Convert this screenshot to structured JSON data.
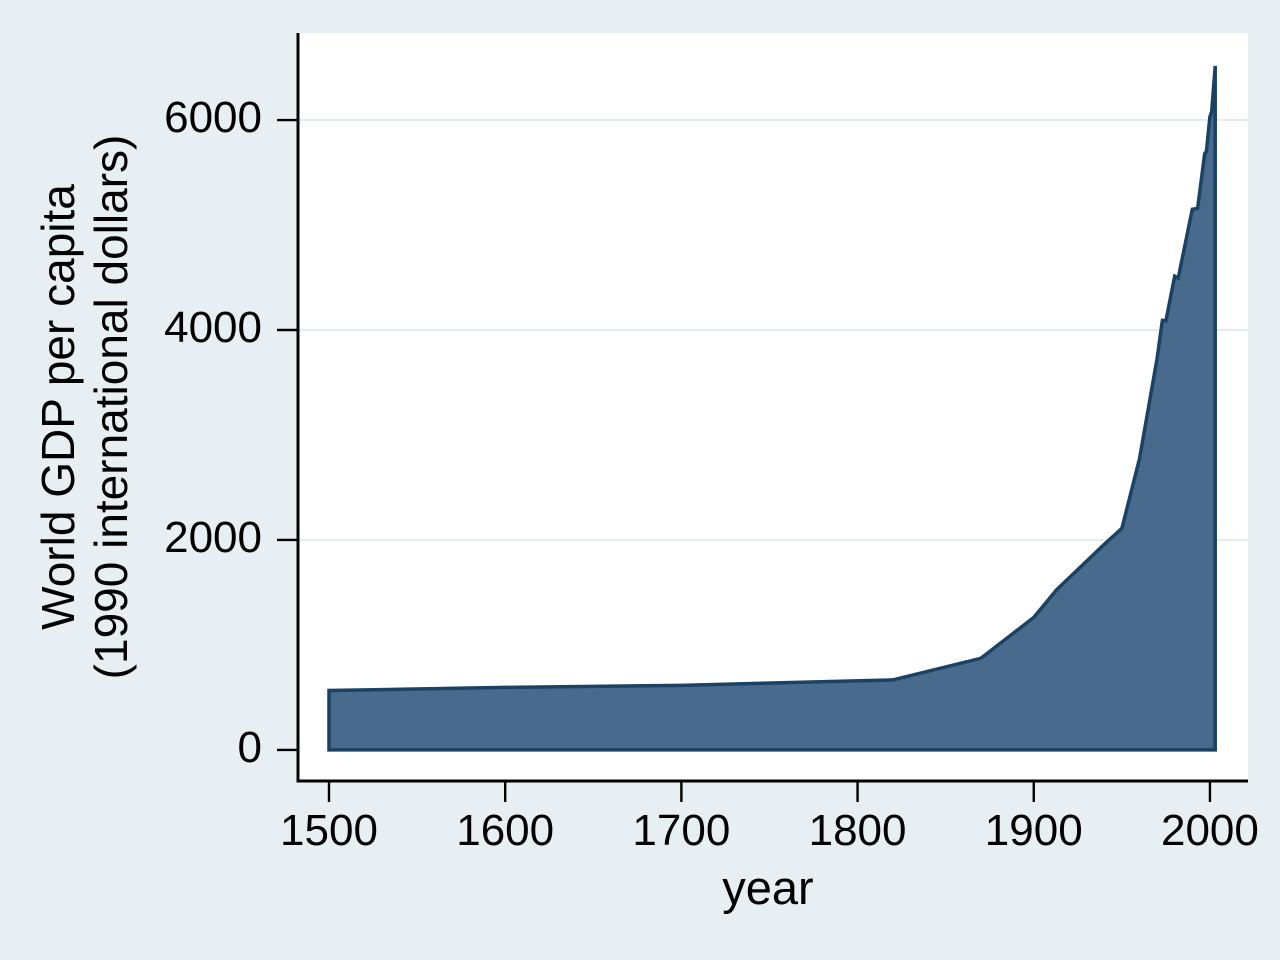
{
  "chart_data": {
    "type": "area",
    "title": "",
    "xlabel": "year",
    "ylabel_line1": "World GDP per capita",
    "ylabel_line2": "(1990 international dollars)",
    "x_ticks": [
      1500,
      1600,
      1700,
      1800,
      1900,
      2000
    ],
    "x_tick_labels": [
      "1500",
      "1600",
      "1700",
      "1800",
      "1900",
      "2000"
    ],
    "y_ticks": [
      0,
      2000,
      4000,
      6000
    ],
    "y_tick_labels": [
      "0",
      "2000",
      "4000",
      "6000"
    ],
    "xlim": [
      1482.4,
      2021.6
    ],
    "ylim": [
      -296,
      6829
    ],
    "baseline": 0,
    "grid": "horizontal gridlines at 2000, 4000, 6000",
    "legend": "none",
    "series": [
      {
        "name": "World GDP per capita (1990 international dollars)",
        "points": [
          [
            1500,
            566
          ],
          [
            1600,
            596
          ],
          [
            1700,
            615
          ],
          [
            1820,
            667
          ],
          [
            1870,
            873
          ],
          [
            1900,
            1262
          ],
          [
            1913,
            1526
          ],
          [
            1940,
            1958
          ],
          [
            1950,
            2111
          ],
          [
            1960,
            2773
          ],
          [
            1970,
            3729
          ],
          [
            1973,
            4091
          ],
          [
            1975,
            4088
          ],
          [
            1980,
            4512
          ],
          [
            1982,
            4494
          ],
          [
            1990,
            5150
          ],
          [
            1993,
            5159
          ],
          [
            1997,
            5680
          ],
          [
            1998,
            5700
          ],
          [
            2000,
            6030
          ],
          [
            2001,
            6080
          ],
          [
            2003,
            6516
          ]
        ]
      }
    ],
    "colors": {
      "background": "#e8eff2",
      "plot_background": "#ffffff",
      "gridline": "#e4eef1",
      "area_fill": "#486b8d",
      "area_line": "#1b4163",
      "axis": "#000000",
      "text": "#000000"
    }
  }
}
